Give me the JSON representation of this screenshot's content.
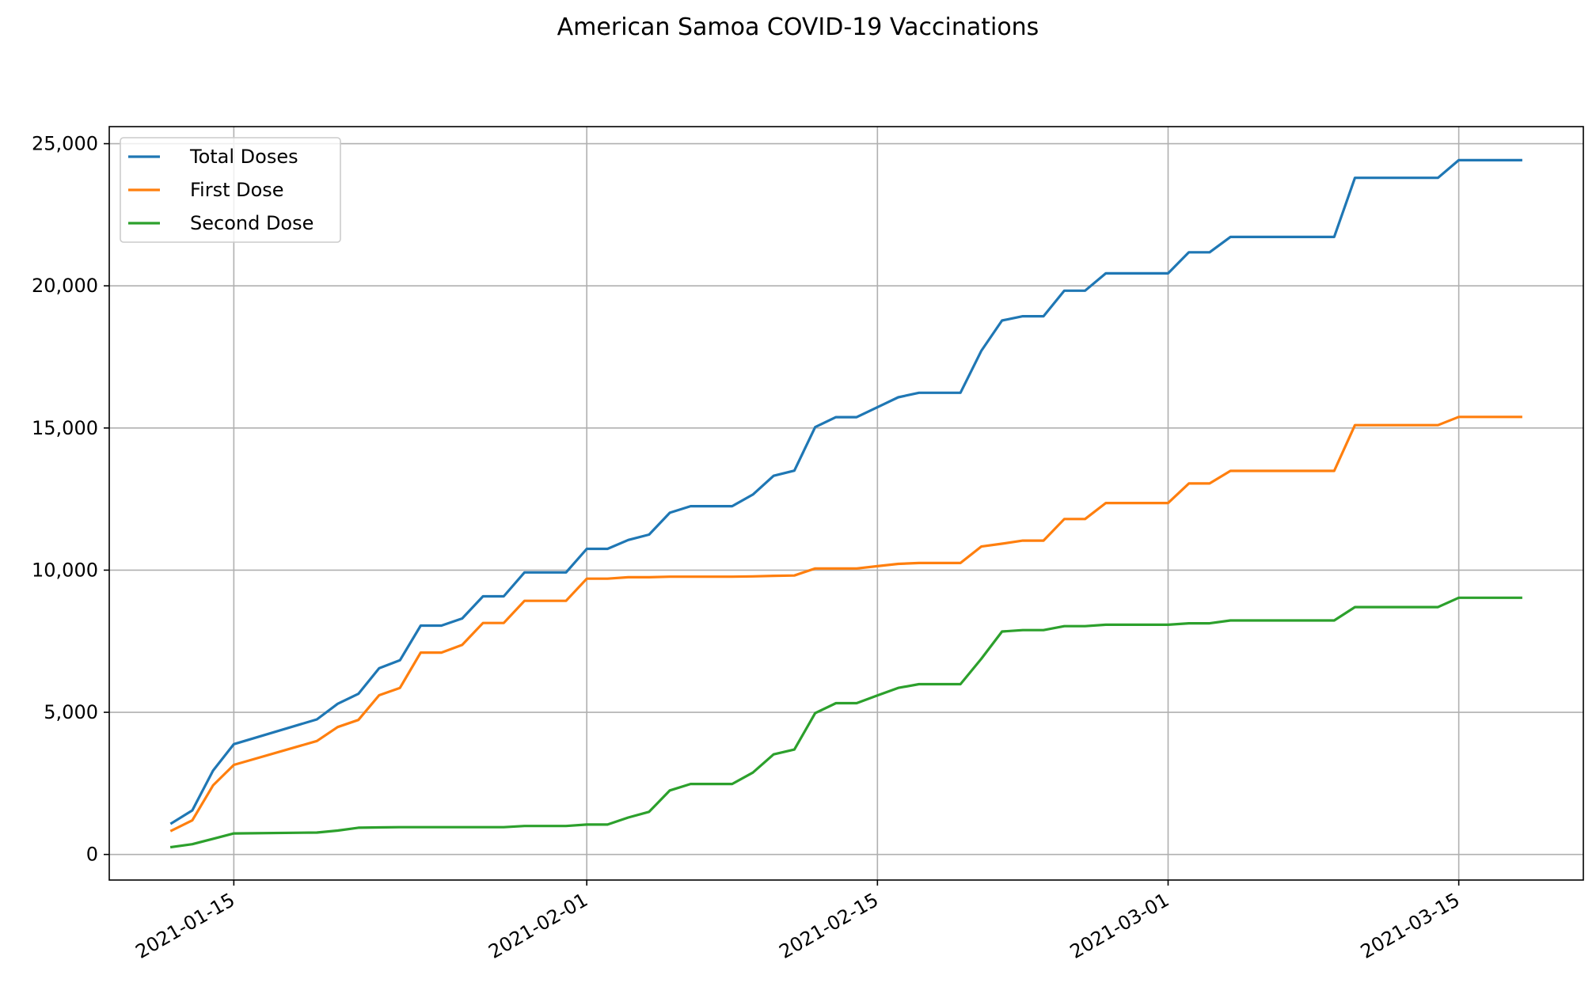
{
  "chart_data": {
    "type": "line",
    "title": "American Samoa COVID-19 Vaccinations",
    "xlabel": "",
    "ylabel": "",
    "x_type": "date",
    "xlim": [
      "2021-01-09",
      "2021-03-21"
    ],
    "ylim": [
      -900,
      25600
    ],
    "x_ticks": [
      "2021-01-15",
      "2021-02-01",
      "2021-02-15",
      "2021-03-01",
      "2021-03-15"
    ],
    "y_ticks": [
      0,
      5000,
      10000,
      15000,
      20000,
      25000
    ],
    "y_tick_labels": [
      "0",
      "5,000",
      "10,000",
      "15,000",
      "20,000",
      "25,000"
    ],
    "grid": true,
    "legend_position": "top-left",
    "x": [
      "2021-01-12",
      "2021-01-13",
      "2021-01-14",
      "2021-01-15",
      "2021-01-19",
      "2021-01-20",
      "2021-01-21",
      "2021-01-22",
      "2021-01-23",
      "2021-01-24",
      "2021-01-25",
      "2021-01-26",
      "2021-01-27",
      "2021-01-28",
      "2021-01-29",
      "2021-01-30",
      "2021-01-31",
      "2021-02-01",
      "2021-02-02",
      "2021-02-03",
      "2021-02-04",
      "2021-02-05",
      "2021-02-06",
      "2021-02-07",
      "2021-02-08",
      "2021-02-09",
      "2021-02-10",
      "2021-02-11",
      "2021-02-12",
      "2021-02-13",
      "2021-02-14",
      "2021-02-15",
      "2021-02-16",
      "2021-02-17",
      "2021-02-18",
      "2021-02-19",
      "2021-02-20",
      "2021-02-21",
      "2021-02-22",
      "2021-02-23",
      "2021-02-24",
      "2021-02-25",
      "2021-02-26",
      "2021-02-27",
      "2021-02-28",
      "2021-03-01",
      "2021-03-02",
      "2021-03-03",
      "2021-03-04",
      "2021-03-05",
      "2021-03-06",
      "2021-03-07",
      "2021-03-08",
      "2021-03-09",
      "2021-03-10",
      "2021-03-11",
      "2021-03-12",
      "2021-03-13",
      "2021-03-14",
      "2021-03-15",
      "2021-03-16",
      "2021-03-17",
      "2021-03-18"
    ],
    "series": [
      {
        "name": "Total Doses",
        "color": "#1f77b4",
        "values": [
          1100,
          1550,
          2950,
          3880,
          4750,
          5300,
          5650,
          6550,
          6830,
          8050,
          8050,
          8300,
          9080,
          9080,
          9920,
          9920,
          9920,
          10750,
          10750,
          11060,
          11250,
          12020,
          12250,
          12250,
          12250,
          12660,
          13320,
          13500,
          15030,
          15380,
          15380,
          15730,
          16080,
          16240,
          16240,
          16240,
          17710,
          18780,
          18930,
          18930,
          19830,
          19830,
          20440,
          20440,
          20440,
          20440,
          21180,
          21180,
          21720,
          21720,
          21720,
          21720,
          21720,
          21720,
          23800,
          23800,
          23800,
          23800,
          23800,
          24420,
          24420,
          24420,
          24420
        ]
      },
      {
        "name": "First Dose",
        "color": "#ff7f0e",
        "values": [
          840,
          1200,
          2430,
          3150,
          3990,
          4480,
          4730,
          5600,
          5860,
          7100,
          7100,
          7370,
          8140,
          8140,
          8920,
          8920,
          8920,
          9700,
          9700,
          9750,
          9750,
          9770,
          9770,
          9770,
          9770,
          9780,
          9800,
          9810,
          10060,
          10060,
          10060,
          10140,
          10220,
          10250,
          10250,
          10250,
          10830,
          10930,
          11040,
          11040,
          11800,
          11800,
          12360,
          12360,
          12360,
          12360,
          13050,
          13050,
          13490,
          13490,
          13490,
          13490,
          13490,
          13490,
          15100,
          15100,
          15100,
          15100,
          15100,
          15390,
          15390,
          15390,
          15390
        ]
      },
      {
        "name": "Second Dose",
        "color": "#2ca02c",
        "values": [
          260,
          360,
          550,
          740,
          770,
          840,
          940,
          950,
          960,
          960,
          960,
          960,
          960,
          960,
          1000,
          1000,
          1000,
          1050,
          1050,
          1300,
          1500,
          2250,
          2480,
          2480,
          2480,
          2880,
          3520,
          3690,
          4970,
          5320,
          5320,
          5590,
          5860,
          5990,
          5990,
          5990,
          6880,
          7840,
          7890,
          7890,
          8030,
          8030,
          8080,
          8080,
          8080,
          8080,
          8130,
          8130,
          8230,
          8230,
          8230,
          8230,
          8230,
          8230,
          8700,
          8700,
          8700,
          8700,
          8700,
          9030,
          9030,
          9030,
          9030
        ]
      }
    ]
  }
}
